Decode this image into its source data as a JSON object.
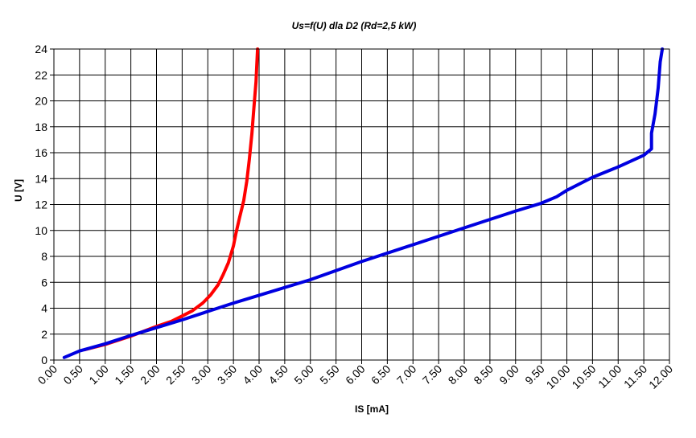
{
  "chart_data": {
    "type": "line",
    "title": "Us=f(U) dla D2 (Rd=2,5 kW)",
    "xlabel": "IS [mA]",
    "ylabel": "U [V]",
    "xlim": [
      0,
      12
    ],
    "ylim": [
      0,
      24
    ],
    "grid": true,
    "x_ticks": [
      "0.00",
      "0.50",
      "1.00",
      "1.50",
      "2.00",
      "2.50",
      "3.00",
      "3.50",
      "4.00",
      "4.50",
      "5.00",
      "5.50",
      "6.00",
      "6.50",
      "7.00",
      "7.50",
      "8.00",
      "8.50",
      "9.00",
      "9.50",
      "10.00",
      "10.50",
      "11.00",
      "11.50",
      "12.00"
    ],
    "y_ticks": [
      "0",
      "2",
      "4",
      "6",
      "8",
      "10",
      "12",
      "14",
      "16",
      "18",
      "20",
      "22",
      "24"
    ],
    "series": [
      {
        "color": "#ff0000",
        "points": [
          [
            0.6,
            0.8
          ],
          [
            1.0,
            1.2
          ],
          [
            1.5,
            1.85
          ],
          [
            2.0,
            2.6
          ],
          [
            2.3,
            3.0
          ],
          [
            2.5,
            3.4
          ],
          [
            2.7,
            3.8
          ],
          [
            2.9,
            4.4
          ],
          [
            3.05,
            5.0
          ],
          [
            3.2,
            5.8
          ],
          [
            3.3,
            6.6
          ],
          [
            3.4,
            7.5
          ],
          [
            3.5,
            8.8
          ],
          [
            3.55,
            9.8
          ],
          [
            3.62,
            11.0
          ],
          [
            3.7,
            12.3
          ],
          [
            3.76,
            13.8
          ],
          [
            3.81,
            15.5
          ],
          [
            3.86,
            17.5
          ],
          [
            3.9,
            19.5
          ],
          [
            3.94,
            21.5
          ],
          [
            3.97,
            24.0
          ]
        ]
      },
      {
        "color": "#0000e0",
        "points": [
          [
            0.2,
            0.2
          ],
          [
            0.5,
            0.7
          ],
          [
            1.0,
            1.25
          ],
          [
            1.5,
            1.9
          ],
          [
            2.0,
            2.5
          ],
          [
            2.5,
            3.1
          ],
          [
            3.0,
            3.75
          ],
          [
            3.5,
            4.4
          ],
          [
            4.0,
            5.0
          ],
          [
            5.0,
            6.2
          ],
          [
            6.0,
            7.6
          ],
          [
            7.0,
            8.9
          ],
          [
            8.0,
            10.2
          ],
          [
            9.0,
            11.5
          ],
          [
            9.5,
            12.1
          ],
          [
            9.8,
            12.6
          ],
          [
            10.0,
            13.1
          ],
          [
            10.5,
            14.1
          ],
          [
            11.0,
            14.9
          ],
          [
            11.5,
            15.8
          ],
          [
            11.65,
            16.3
          ],
          [
            11.65,
            17.5
          ],
          [
            11.72,
            19.0
          ],
          [
            11.78,
            21.0
          ],
          [
            11.82,
            23.0
          ],
          [
            11.86,
            24.0
          ]
        ]
      }
    ]
  }
}
